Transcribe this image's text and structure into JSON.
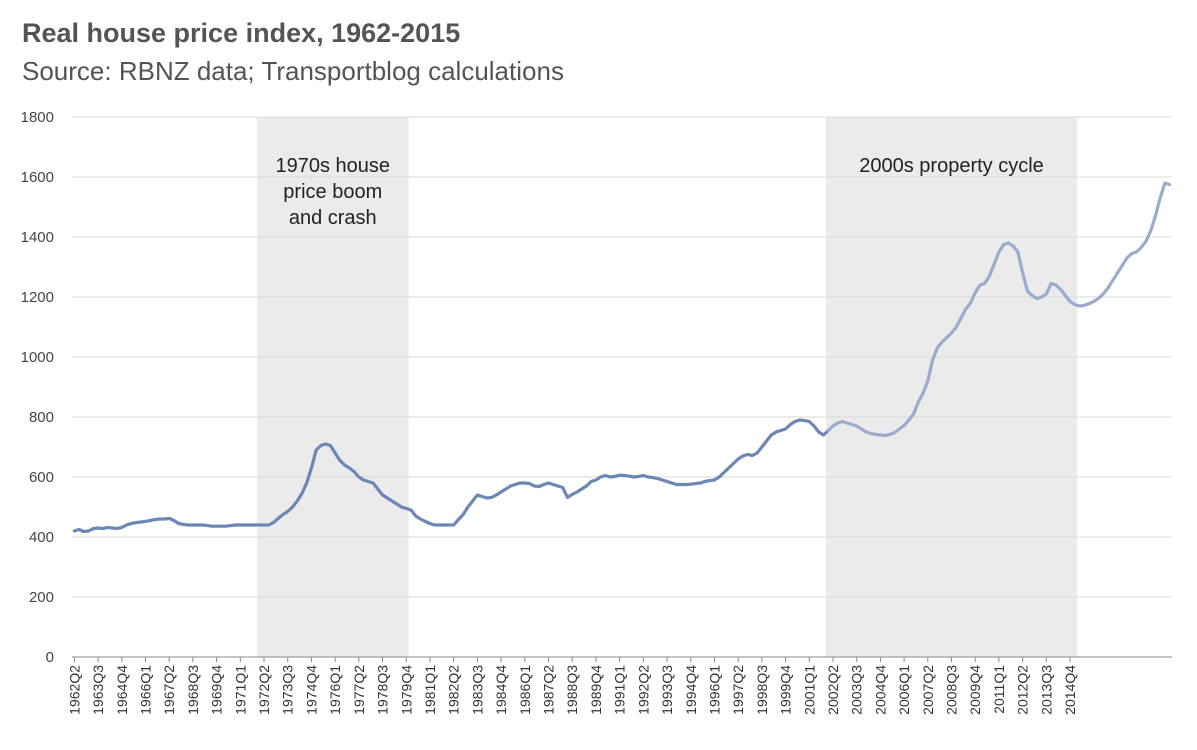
{
  "header": {
    "title": "Real house price index, 1962-2015",
    "subtitle": "Source: RBNZ data; Transportblog calculations"
  },
  "colors": {
    "line_dark": "#6c86b6",
    "line_light": "#9aabcc",
    "band": "#ebebeb",
    "grid": "#d9d9d9",
    "axis": "#888888"
  },
  "chart_data": {
    "type": "line",
    "title": "Real house price index, 1962-2015",
    "subtitle": "Source: RBNZ data; Transportblog calculations",
    "xlabel": "",
    "ylabel": "",
    "ylim": [
      0,
      1800
    ],
    "y_ticks": [
      0,
      200,
      400,
      600,
      800,
      1000,
      1200,
      1400,
      1600,
      1800
    ],
    "grid": true,
    "legend": "none",
    "x_tick_labels": [
      "1962Q2",
      "1963Q3",
      "1964Q4",
      "1966Q1",
      "1967Q2",
      "1968Q3",
      "1969Q4",
      "1971Q1",
      "1972Q2",
      "1973Q3",
      "1974Q4",
      "1976Q1",
      "1977Q2",
      "1978Q3",
      "1979Q4",
      "1981Q1",
      "1982Q2",
      "1983Q3",
      "1984Q4",
      "1986Q1",
      "1987Q2",
      "1988Q3",
      "1989Q4",
      "1991Q1",
      "1992Q2",
      "1993Q3",
      "1994Q4",
      "1996Q1",
      "1997Q2",
      "1998Q3",
      "1999Q4",
      "2001Q1",
      "2002Q2",
      "2003Q3",
      "2004Q4",
      "2006Q1",
      "2007Q2",
      "2008Q3",
      "2009Q4",
      "2011Q1",
      "2012Q2",
      "2013Q3",
      "2014Q4"
    ],
    "shaded_regions": [
      {
        "label": [
          "1970s house",
          "price boom",
          "and crash"
        ],
        "start": "1972Q1",
        "end": "1980Q1"
      },
      {
        "label": [
          "2000s property cycle"
        ],
        "start": "2002Q1",
        "end": "2015Q2"
      }
    ],
    "series": [
      {
        "start": "1962Q2",
        "values": [
          420,
          425,
          418,
          420,
          428,
          430,
          428,
          432,
          430,
          428,
          432,
          440,
          445,
          448,
          450,
          452,
          455,
          458,
          460,
          460,
          462,
          455,
          445,
          442,
          440,
          440,
          440,
          440,
          438,
          436,
          436,
          436,
          436,
          438,
          440,
          440,
          440,
          440,
          440,
          440,
          440,
          440,
          448,
          462,
          475,
          485,
          500,
          520,
          545,
          580,
          630,
          690,
          705,
          710,
          705,
          680,
          655,
          640,
          630,
          618,
          600,
          590,
          585,
          580,
          560,
          540,
          530,
          520,
          510,
          500,
          495,
          490,
          470,
          460,
          452,
          445,
          440,
          440,
          440,
          440,
          440,
          458,
          475,
          500,
          520,
          540,
          535,
          530,
          532,
          540,
          550,
          560,
          570,
          575,
          580,
          580,
          578,
          570,
          568,
          575,
          580,
          575,
          570,
          565,
          532,
          542,
          550,
          560,
          570,
          585,
          590,
          600,
          605,
          600,
          602,
          606,
          605,
          603,
          600,
          602,
          605,
          600,
          598,
          595,
          590,
          585,
          580,
          575,
          575,
          575,
          576,
          578,
          580,
          585,
          588,
          590,
          600,
          615,
          630,
          645,
          660,
          670,
          675,
          672,
          680,
          700,
          720,
          740,
          750,
          755,
          760,
          775,
          785,
          790,
          788,
          785,
          770,
          750,
          740,
          755,
          770,
          780,
          785,
          780,
          775,
          770,
          760,
          750,
          745,
          742,
          740,
          738,
          742,
          748,
          760,
          772,
          790,
          810,
          850,
          880,
          920,
          990,
          1030,
          1050,
          1065,
          1080,
          1100,
          1130,
          1160,
          1180,
          1215,
          1240,
          1245,
          1270,
          1310,
          1350,
          1375,
          1380,
          1370,
          1350,
          1280,
          1220,
          1205,
          1195,
          1200,
          1210,
          1245,
          1240,
          1225,
          1205,
          1185,
          1175,
          1170,
          1172,
          1178,
          1185,
          1195,
          1210,
          1230,
          1255,
          1280,
          1305,
          1330,
          1345,
          1350,
          1365,
          1385,
          1420,
          1470,
          1530,
          1580,
          1575
        ]
      }
    ]
  }
}
